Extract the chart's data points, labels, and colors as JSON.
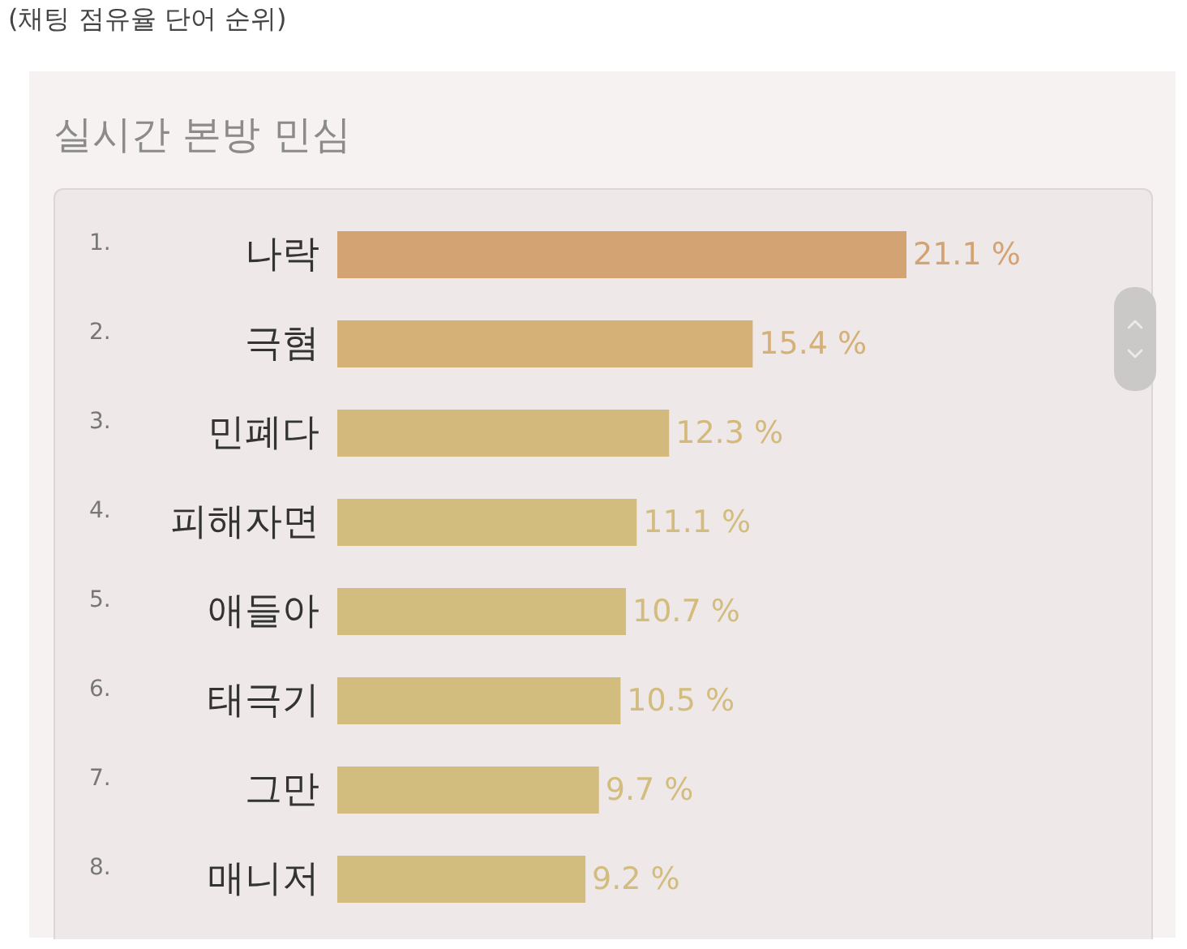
{
  "chart_data": {
    "type": "bar",
    "orientation": "horizontal",
    "title": "실시간 본방 민심",
    "subtitle": "(채팅 점유율 단어 순위)",
    "categories": [
      "나락",
      "극혐",
      "민폐다",
      "피해자면",
      "애들아",
      "태극기",
      "그만",
      "매니저"
    ],
    "values": [
      21.1,
      15.4,
      12.3,
      11.1,
      10.7,
      10.5,
      9.7,
      9.2
    ],
    "colors": [
      "#d4a373",
      "#d5b077",
      "#d3ba7c",
      "#d2bc7e",
      "#d2bc7e",
      "#d2bc7e",
      "#d2bc7e",
      "#d2bc7e"
    ],
    "value_labels": [
      "21.1 %",
      "15.4 %",
      "12.3 %",
      "11.1 %",
      "10.7 %",
      "10.5 %",
      "9.7 %",
      "9.2 %"
    ],
    "annotations": [
      "1.",
      "2.",
      "3.",
      "4.",
      "5.",
      "6.",
      "7.",
      "8."
    ]
  }
}
